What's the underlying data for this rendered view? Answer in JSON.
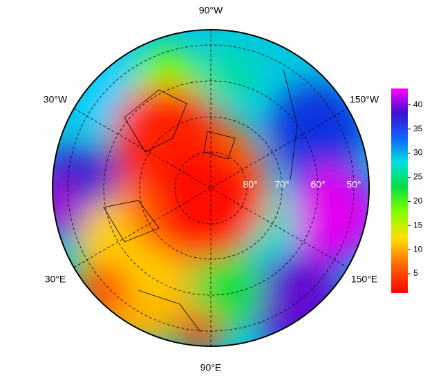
{
  "map": {
    "longitude_labels": [
      "90°W",
      "30°W",
      "150°W",
      "30°E",
      "150°E",
      "90°E"
    ],
    "latitude_labels": [
      "80°",
      "70°",
      "60°",
      "50°"
    ],
    "colorbar": {
      "range": [
        1,
        43.4
      ],
      "ticks": [
        5,
        10,
        15,
        20,
        25,
        30,
        35,
        40
      ]
    }
  }
}
